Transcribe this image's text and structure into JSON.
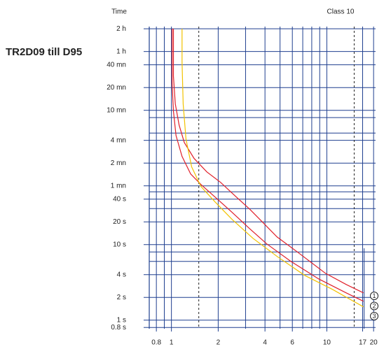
{
  "chart_data": {
    "type": "line",
    "title": "TR2D09 till D95",
    "y_label": "Time",
    "annotation": "Class 10",
    "xscale": "log",
    "yscale": "log",
    "xlim": [
      0.72,
      20.6
    ],
    "ylim": [
      0.77,
      7700
    ],
    "xticks": [
      0.8,
      1,
      2,
      4,
      6,
      10,
      17,
      20
    ],
    "yticks": [
      {
        "value": 7200,
        "label": "2 h"
      },
      {
        "value": 3600,
        "label": "1 h"
      },
      {
        "value": 2400,
        "label": "40 mn"
      },
      {
        "value": 1200,
        "label": "20 mn"
      },
      {
        "value": 600,
        "label": "10 mn"
      },
      {
        "value": 240,
        "label": "4 mn"
      },
      {
        "value": 120,
        "label": "2 mn"
      },
      {
        "value": 60,
        "label": "1 mn"
      },
      {
        "value": 40,
        "label": "40 s"
      },
      {
        "value": 20,
        "label": "20 s"
      },
      {
        "value": 10,
        "label": "10 s"
      },
      {
        "value": 4,
        "label": "4 s"
      },
      {
        "value": 2,
        "label": "2 s"
      },
      {
        "value": 1,
        "label": "1 s"
      },
      {
        "value": 0.8,
        "label": "0.8 s"
      }
    ],
    "xgrid": [
      0.8,
      0.9,
      1,
      2,
      3,
      4,
      5,
      6,
      7,
      8,
      9,
      10,
      17,
      20
    ],
    "xgrid_dashed": [
      1.5,
      15
    ],
    "ygrid": [
      7200,
      3600,
      2400,
      1200,
      600,
      480,
      300,
      240,
      120,
      60,
      50,
      40,
      30,
      20,
      10,
      8,
      6,
      4,
      2,
      1,
      0.8
    ],
    "grid_color": "#1f3f8f",
    "series": [
      {
        "name": "1",
        "color": "#e0202a",
        "x": [
          1.03,
          1.03,
          1.06,
          1.12,
          1.21,
          1.4,
          1.69,
          2.07,
          2.59,
          3.18,
          3.9,
          4.79,
          6.51,
          9.8,
          13.3,
          17.2
        ],
        "values": [
          7200,
          1703,
          727,
          383,
          225,
          138,
          91.8,
          66.7,
          43.5,
          29.6,
          19.4,
          12.6,
          7.9,
          4.17,
          2.97,
          2.3
        ]
      },
      {
        "name": "2",
        "color": "#e0202a",
        "x": [
          1.01,
          1.01,
          1.03,
          1.07,
          1.17,
          1.33,
          1.55,
          1.91,
          2.46,
          3.18,
          4.11,
          5.87,
          8.85,
          13.3,
          17.2
        ],
        "values": [
          7200,
          1377,
          587,
          278,
          147,
          86.1,
          62.5,
          42.6,
          26.7,
          16.3,
          10.2,
          6.0,
          3.52,
          2.3,
          1.78
        ]
      },
      {
        "name": "3",
        "color": "#f2c200",
        "x": [
          1.17,
          1.17,
          1.19,
          1.24,
          1.35,
          1.55,
          1.91,
          2.46,
          3.35,
          4.79,
          7.21,
          10.85,
          17.2
        ],
        "values": [
          7200,
          2612,
          727,
          250,
          107,
          58.7,
          36.7,
          21.5,
          12.1,
          6.96,
          3.91,
          2.56,
          1.5
        ]
      }
    ]
  }
}
